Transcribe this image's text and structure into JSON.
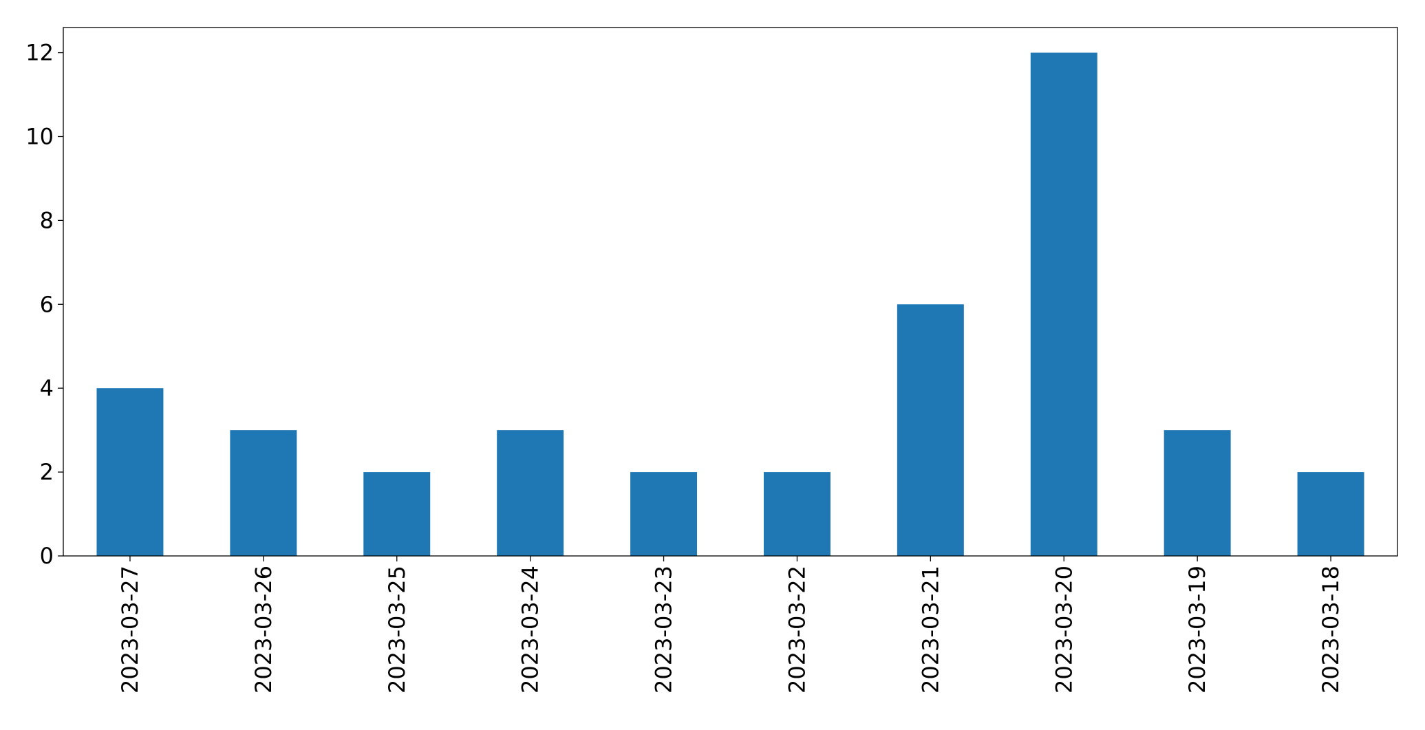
{
  "chart_data": {
    "type": "bar",
    "categories": [
      "2023-03-27",
      "2023-03-26",
      "2023-03-25",
      "2023-03-24",
      "2023-03-23",
      "2023-03-22",
      "2023-03-21",
      "2023-03-20",
      "2023-03-19",
      "2023-03-18"
    ],
    "values": [
      4,
      3,
      2,
      3,
      2,
      2,
      6,
      12,
      3,
      2
    ],
    "color": "#1f77b4",
    "ylim": [
      0,
      12.6
    ],
    "yticks": [
      0,
      2,
      4,
      6,
      8,
      10,
      12
    ],
    "grid": false
  }
}
